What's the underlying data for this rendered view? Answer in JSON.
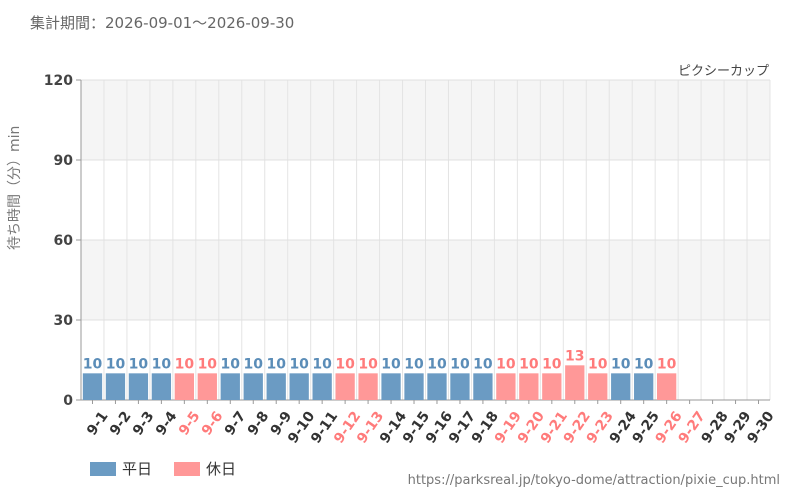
{
  "header": {
    "period": "集計期間：2026-09-01～2026-09-30"
  },
  "footer": {
    "source": "https://parksreal.jp/tokyo-dome/attraction/pixie_cup.html"
  },
  "colors": {
    "weekday": "#6b9bc3",
    "holiday": "#ff9898",
    "weekday_text": "#333333",
    "holiday_text": "#ff7b7b"
  },
  "chart_data": {
    "type": "bar",
    "title": "ピクシーカップ",
    "ylabel": "待ち時間（分）min",
    "ylim": [
      0,
      120
    ],
    "yticks": [
      "0",
      "30",
      "60",
      "90",
      "120"
    ],
    "grid": true,
    "legend": "bottom-left",
    "categories": [
      "9-1",
      "9-2",
      "9-3",
      "9-4",
      "9-5",
      "9-6",
      "9-7",
      "9-8",
      "9-9",
      "9-10",
      "9-11",
      "9-12",
      "9-13",
      "9-14",
      "9-15",
      "9-16",
      "9-17",
      "9-18",
      "9-19",
      "9-20",
      "9-21",
      "9-22",
      "9-23",
      "9-24",
      "9-25",
      "9-26",
      "9-27",
      "9-28",
      "9-29",
      "9-30"
    ],
    "values": [
      10,
      10,
      10,
      10,
      10,
      10,
      10,
      10,
      10,
      10,
      10,
      10,
      10,
      10,
      10,
      10,
      10,
      10,
      10,
      10,
      10,
      13,
      10,
      10,
      10,
      10,
      null,
      null,
      null,
      null
    ],
    "day_type": [
      "weekday",
      "weekday",
      "weekday",
      "weekday",
      "holiday",
      "holiday",
      "weekday",
      "weekday",
      "weekday",
      "weekday",
      "weekday",
      "holiday",
      "holiday",
      "weekday",
      "weekday",
      "weekday",
      "weekday",
      "weekday",
      "holiday",
      "holiday",
      "holiday",
      "holiday",
      "holiday",
      "weekday",
      "weekday",
      "holiday",
      "holiday",
      "weekday",
      "weekday",
      "weekday"
    ],
    "series": [
      {
        "name": "平日"
      },
      {
        "name": "休日"
      }
    ]
  }
}
